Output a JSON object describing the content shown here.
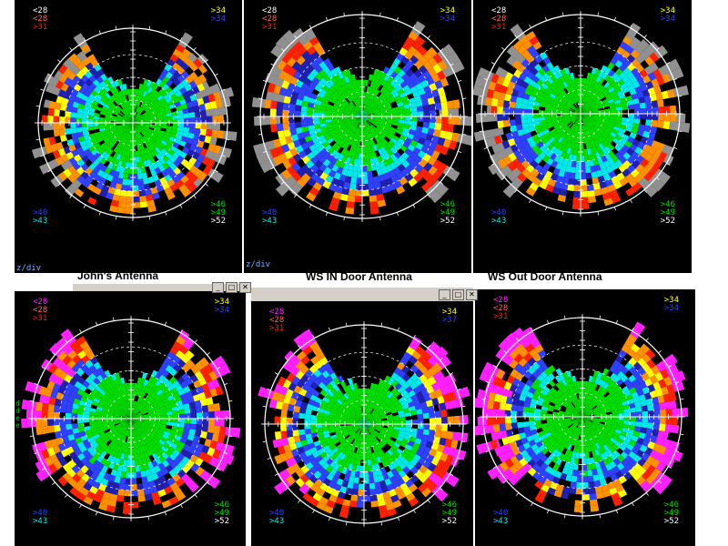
{
  "captions": {
    "johns": "John's Antenna",
    "ws_in": "WS IN Door Antenna",
    "ws_out": "WS Out Door Antenna"
  },
  "div_label": "z/div",
  "div_label_2": "z/div",
  "side_marks": [
    "d",
    "d",
    "e",
    "e"
  ],
  "window_buttons": [
    "_",
    "□",
    "✕"
  ],
  "colors": {
    "green": "#00e000",
    "cyan": "#00e8e8",
    "blue": "#3040ff",
    "navy": "#2020b0",
    "yellow": "#ffff00",
    "orange": "#ff9000",
    "red": "#ff2000",
    "magenta": "#ff20ff",
    "gray": "#909090",
    "white": "#ffffff"
  },
  "panels": [
    {
      "id": "top-left",
      "legend_tl": [
        {
          "t": "<28",
          "c": "#ffffff"
        },
        {
          "t": "<28",
          "c": "#ff6060"
        },
        {
          "t": ">31",
          "c": "#ff2000"
        }
      ],
      "legend_tr": [
        {
          "t": ">34",
          "c": "#ffff00"
        },
        {
          "t": ">34",
          "c": "#3040ff"
        }
      ],
      "legend_bl": [
        {
          "t": ">40",
          "c": "#3040ff"
        },
        {
          "t": ">43",
          "c": "#00e8e8"
        }
      ],
      "legend_br": [
        {
          "t": ">46",
          "c": "#00e000"
        },
        {
          "t": ">49",
          "c": "#00e000"
        },
        {
          "t": ">52",
          "c": "#ffffff"
        }
      ]
    },
    {
      "id": "top-middle",
      "legend_tl": [
        {
          "t": "<28",
          "c": "#ffffff"
        },
        {
          "t": "<28",
          "c": "#ff6060"
        },
        {
          "t": ">31",
          "c": "#ff2000"
        }
      ],
      "legend_tr": [
        {
          "t": ">34",
          "c": "#ffff00"
        },
        {
          "t": ">34",
          "c": "#3040ff"
        }
      ],
      "legend_bl": [
        {
          "t": ">40",
          "c": "#3040ff"
        },
        {
          "t": ">43",
          "c": "#00e8e8"
        }
      ],
      "legend_br": [
        {
          "t": ">46",
          "c": "#00e000"
        },
        {
          "t": ">49",
          "c": "#00e000"
        },
        {
          "t": ">52",
          "c": "#ffffff"
        }
      ]
    },
    {
      "id": "top-right",
      "legend_tl": [
        {
          "t": "<28",
          "c": "#ffffff"
        },
        {
          "t": "<28",
          "c": "#ff6060"
        },
        {
          "t": ">31",
          "c": "#ff2000"
        }
      ],
      "legend_tr": [
        {
          "t": ">34",
          "c": "#ffff00"
        },
        {
          "t": ">34",
          "c": "#3040ff"
        }
      ],
      "legend_bl": [
        {
          "t": ">40",
          "c": "#3040ff"
        },
        {
          "t": ">43",
          "c": "#00e8e8"
        }
      ],
      "legend_br": [
        {
          "t": ">46",
          "c": "#00e000"
        },
        {
          "t": ">49",
          "c": "#00e000"
        },
        {
          "t": ">52",
          "c": "#ffffff"
        }
      ]
    },
    {
      "id": "bottom-left",
      "legend_tl": [
        {
          "t": "<28",
          "c": "#ff20ff"
        },
        {
          "t": "<28",
          "c": "#ff6060"
        },
        {
          "t": ">31",
          "c": "#ff2000"
        }
      ],
      "legend_tr": [
        {
          "t": ">34",
          "c": "#ffff00"
        },
        {
          "t": ">34",
          "c": "#3040ff"
        }
      ],
      "legend_bl": [
        {
          "t": ">40",
          "c": "#3040ff"
        },
        {
          "t": ">43",
          "c": "#00e8e8"
        }
      ],
      "legend_br": [
        {
          "t": ">46",
          "c": "#00e000"
        },
        {
          "t": ">49",
          "c": "#00e000"
        },
        {
          "t": ">52",
          "c": "#ffffff"
        }
      ]
    },
    {
      "id": "bottom-middle",
      "legend_tl": [
        {
          "t": "<28",
          "c": "#ff20ff"
        },
        {
          "t": "<28",
          "c": "#ff6060"
        },
        {
          "t": ">31",
          "c": "#ff2000"
        }
      ],
      "legend_tr": [
        {
          "t": ">34",
          "c": "#ffff00"
        },
        {
          "t": ">37",
          "c": "#3040ff"
        }
      ],
      "legend_bl": [
        {
          "t": ">40",
          "c": "#3040ff"
        },
        {
          "t": ">43",
          "c": "#00e8e8"
        }
      ],
      "legend_br": [
        {
          "t": ">46",
          "c": "#00e000"
        },
        {
          "t": ">49",
          "c": "#00e000"
        },
        {
          "t": ">52",
          "c": "#ffffff"
        }
      ]
    },
    {
      "id": "bottom-right",
      "legend_tl": [
        {
          "t": "<28",
          "c": "#ff20ff"
        },
        {
          "t": "<28",
          "c": "#ff6060"
        },
        {
          "t": ">31",
          "c": "#ff2000"
        }
      ],
      "legend_tr": [
        {
          "t": ">34",
          "c": "#ffff00"
        },
        {
          "t": ">34",
          "c": "#3040ff"
        }
      ],
      "legend_bl": [
        {
          "t": ">40",
          "c": "#3040ff"
        },
        {
          "t": ">43",
          "c": "#00e8e8"
        }
      ],
      "legend_br": [
        {
          "t": ">46",
          "c": "#00e000"
        },
        {
          "t": ">49",
          "c": "#00e000"
        },
        {
          "t": ">52",
          "c": "#ffffff"
        }
      ]
    }
  ]
}
